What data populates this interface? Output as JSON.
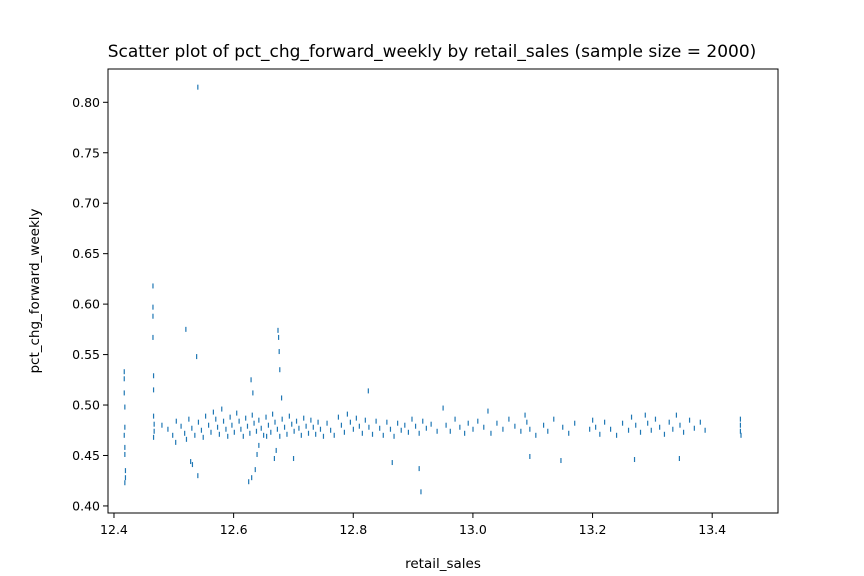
{
  "chart_data": {
    "type": "scatter",
    "title": "Scatter plot of pct_chg_forward_weekly by retail_sales (sample size = 2000)",
    "xlabel": "retail_sales",
    "ylabel": "pct_chg_forward_weekly",
    "xlim": [
      12.39,
      13.51
    ],
    "ylim": [
      0.393,
      0.833
    ],
    "xticks": [
      "12.4",
      "12.6",
      "12.8",
      "13.0",
      "13.2",
      "13.4"
    ],
    "xtick_values": [
      12.4,
      12.6,
      12.8,
      13.0,
      13.2,
      13.4
    ],
    "yticks": [
      "0.40",
      "0.45",
      "0.50",
      "0.55",
      "0.60",
      "0.65",
      "0.70",
      "0.75",
      "0.80"
    ],
    "ytick_values": [
      0.4,
      0.45,
      0.5,
      0.55,
      0.6,
      0.65,
      0.7,
      0.75,
      0.8
    ],
    "grid": false,
    "marker_color": "#1f77b4",
    "sample_size": 2000,
    "points_estimated_note_free": true,
    "points": [
      [
        12.417,
        0.533
      ],
      [
        12.417,
        0.526
      ],
      [
        12.417,
        0.512
      ],
      [
        12.418,
        0.498
      ],
      [
        12.418,
        0.478
      ],
      [
        12.417,
        0.47
      ],
      [
        12.418,
        0.458
      ],
      [
        12.418,
        0.451
      ],
      [
        12.419,
        0.435
      ],
      [
        12.419,
        0.428
      ],
      [
        12.418,
        0.423
      ],
      [
        12.465,
        0.618
      ],
      [
        12.465,
        0.597
      ],
      [
        12.465,
        0.588
      ],
      [
        12.465,
        0.567
      ],
      [
        12.466,
        0.529
      ],
      [
        12.466,
        0.515
      ],
      [
        12.466,
        0.489
      ],
      [
        12.467,
        0.481
      ],
      [
        12.467,
        0.474
      ],
      [
        12.466,
        0.468
      ],
      [
        12.52,
        0.575
      ],
      [
        12.54,
        0.815
      ],
      [
        12.538,
        0.548
      ],
      [
        12.54,
        0.43
      ],
      [
        12.531,
        0.441
      ],
      [
        12.528,
        0.444
      ],
      [
        12.629,
        0.525
      ],
      [
        12.632,
        0.512
      ],
      [
        12.625,
        0.424
      ],
      [
        12.63,
        0.428
      ],
      [
        12.636,
        0.436
      ],
      [
        12.642,
        0.46
      ],
      [
        12.639,
        0.451
      ],
      [
        12.655,
        0.469
      ],
      [
        12.674,
        0.574
      ],
      [
        12.675,
        0.567
      ],
      [
        12.676,
        0.553
      ],
      [
        12.677,
        0.535
      ],
      [
        12.68,
        0.507
      ],
      [
        12.671,
        0.455
      ],
      [
        12.668,
        0.447
      ],
      [
        12.7,
        0.447
      ],
      [
        12.825,
        0.514
      ],
      [
        12.865,
        0.443
      ],
      [
        12.91,
        0.437
      ],
      [
        12.913,
        0.414
      ],
      [
        13.095,
        0.449
      ],
      [
        13.147,
        0.445
      ],
      [
        13.27,
        0.446
      ],
      [
        13.345,
        0.447
      ],
      [
        12.48,
        0.48
      ],
      [
        12.49,
        0.476
      ],
      [
        12.498,
        0.47
      ],
      [
        12.503,
        0.463
      ],
      [
        12.504,
        0.484
      ],
      [
        12.512,
        0.479
      ],
      [
        12.518,
        0.472
      ],
      [
        12.521,
        0.466
      ],
      [
        12.525,
        0.486
      ],
      [
        12.53,
        0.477
      ],
      [
        12.535,
        0.47
      ],
      [
        12.541,
        0.483
      ],
      [
        12.546,
        0.475
      ],
      [
        12.549,
        0.468
      ],
      [
        12.553,
        0.489
      ],
      [
        12.558,
        0.48
      ],
      [
        12.562,
        0.473
      ],
      [
        12.566,
        0.493
      ],
      [
        12.57,
        0.486
      ],
      [
        12.573,
        0.478
      ],
      [
        12.576,
        0.471
      ],
      [
        12.58,
        0.496
      ],
      [
        12.583,
        0.484
      ],
      [
        12.587,
        0.476
      ],
      [
        12.59,
        0.469
      ],
      [
        12.594,
        0.488
      ],
      [
        12.597,
        0.48
      ],
      [
        12.601,
        0.473
      ],
      [
        12.605,
        0.492
      ],
      [
        12.609,
        0.484
      ],
      [
        12.612,
        0.476
      ],
      [
        12.616,
        0.469
      ],
      [
        12.62,
        0.487
      ],
      [
        12.623,
        0.479
      ],
      [
        12.627,
        0.472
      ],
      [
        12.631,
        0.49
      ],
      [
        12.634,
        0.482
      ],
      [
        12.638,
        0.474
      ],
      [
        12.642,
        0.485
      ],
      [
        12.646,
        0.477
      ],
      [
        12.65,
        0.47
      ],
      [
        12.654,
        0.488
      ],
      [
        12.658,
        0.48
      ],
      [
        12.662,
        0.473
      ],
      [
        12.665,
        0.491
      ],
      [
        12.669,
        0.483
      ],
      [
        12.673,
        0.476
      ],
      [
        12.677,
        0.469
      ],
      [
        12.681,
        0.486
      ],
      [
        12.685,
        0.478
      ],
      [
        12.689,
        0.471
      ],
      [
        12.693,
        0.489
      ],
      [
        12.697,
        0.481
      ],
      [
        12.701,
        0.474
      ],
      [
        12.705,
        0.484
      ],
      [
        12.709,
        0.477
      ],
      [
        12.713,
        0.47
      ],
      [
        12.717,
        0.487
      ],
      [
        12.721,
        0.479
      ],
      [
        12.725,
        0.472
      ],
      [
        12.729,
        0.485
      ],
      [
        12.733,
        0.478
      ],
      [
        12.737,
        0.471
      ],
      [
        12.741,
        0.483
      ],
      [
        12.745,
        0.476
      ],
      [
        12.75,
        0.469
      ],
      [
        12.756,
        0.482
      ],
      [
        12.762,
        0.475
      ],
      [
        12.768,
        0.47
      ],
      [
        12.775,
        0.488
      ],
      [
        12.78,
        0.48
      ],
      [
        12.785,
        0.473
      ],
      [
        12.79,
        0.491
      ],
      [
        12.795,
        0.483
      ],
      [
        12.8,
        0.476
      ],
      [
        12.805,
        0.487
      ],
      [
        12.81,
        0.479
      ],
      [
        12.815,
        0.472
      ],
      [
        12.82,
        0.485
      ],
      [
        12.826,
        0.478
      ],
      [
        12.832,
        0.471
      ],
      [
        12.838,
        0.484
      ],
      [
        12.844,
        0.477
      ],
      [
        12.85,
        0.47
      ],
      [
        12.856,
        0.483
      ],
      [
        12.862,
        0.476
      ],
      [
        12.868,
        0.469
      ],
      [
        12.874,
        0.482
      ],
      [
        12.88,
        0.475
      ],
      [
        12.886,
        0.48
      ],
      [
        12.892,
        0.473
      ],
      [
        12.898,
        0.486
      ],
      [
        12.904,
        0.479
      ],
      [
        12.91,
        0.472
      ],
      [
        12.916,
        0.484
      ],
      [
        12.922,
        0.477
      ],
      [
        12.93,
        0.481
      ],
      [
        12.94,
        0.474
      ],
      [
        12.95,
        0.497
      ],
      [
        12.955,
        0.48
      ],
      [
        12.962,
        0.474
      ],
      [
        12.97,
        0.486
      ],
      [
        12.978,
        0.478
      ],
      [
        12.986,
        0.472
      ],
      [
        12.992,
        0.482
      ],
      [
        13.0,
        0.476
      ],
      [
        13.008,
        0.484
      ],
      [
        13.018,
        0.478
      ],
      [
        13.025,
        0.494
      ],
      [
        13.03,
        0.472
      ],
      [
        13.04,
        0.482
      ],
      [
        13.05,
        0.476
      ],
      [
        13.06,
        0.486
      ],
      [
        13.07,
        0.479
      ],
      [
        13.08,
        0.474
      ],
      [
        13.087,
        0.49
      ],
      [
        13.09,
        0.483
      ],
      [
        13.095,
        0.476
      ],
      [
        13.105,
        0.47
      ],
      [
        13.118,
        0.48
      ],
      [
        13.125,
        0.474
      ],
      [
        13.135,
        0.486
      ],
      [
        13.15,
        0.478
      ],
      [
        13.16,
        0.472
      ],
      [
        13.17,
        0.482
      ],
      [
        13.195,
        0.476
      ],
      [
        13.2,
        0.485
      ],
      [
        13.205,
        0.478
      ],
      [
        13.212,
        0.471
      ],
      [
        13.22,
        0.483
      ],
      [
        13.23,
        0.476
      ],
      [
        13.24,
        0.47
      ],
      [
        13.25,
        0.482
      ],
      [
        13.26,
        0.475
      ],
      [
        13.265,
        0.488
      ],
      [
        13.272,
        0.48
      ],
      [
        13.28,
        0.473
      ],
      [
        13.288,
        0.49
      ],
      [
        13.292,
        0.482
      ],
      [
        13.298,
        0.475
      ],
      [
        13.305,
        0.486
      ],
      [
        13.312,
        0.478
      ],
      [
        13.32,
        0.471
      ],
      [
        13.328,
        0.483
      ],
      [
        13.334,
        0.476
      ],
      [
        13.34,
        0.49
      ],
      [
        13.346,
        0.48
      ],
      [
        13.352,
        0.473
      ],
      [
        13.362,
        0.485
      ],
      [
        13.37,
        0.477
      ],
      [
        13.38,
        0.483
      ],
      [
        13.388,
        0.475
      ],
      [
        13.447,
        0.486
      ],
      [
        13.447,
        0.48
      ],
      [
        13.447,
        0.474
      ],
      [
        13.448,
        0.47
      ]
    ]
  }
}
